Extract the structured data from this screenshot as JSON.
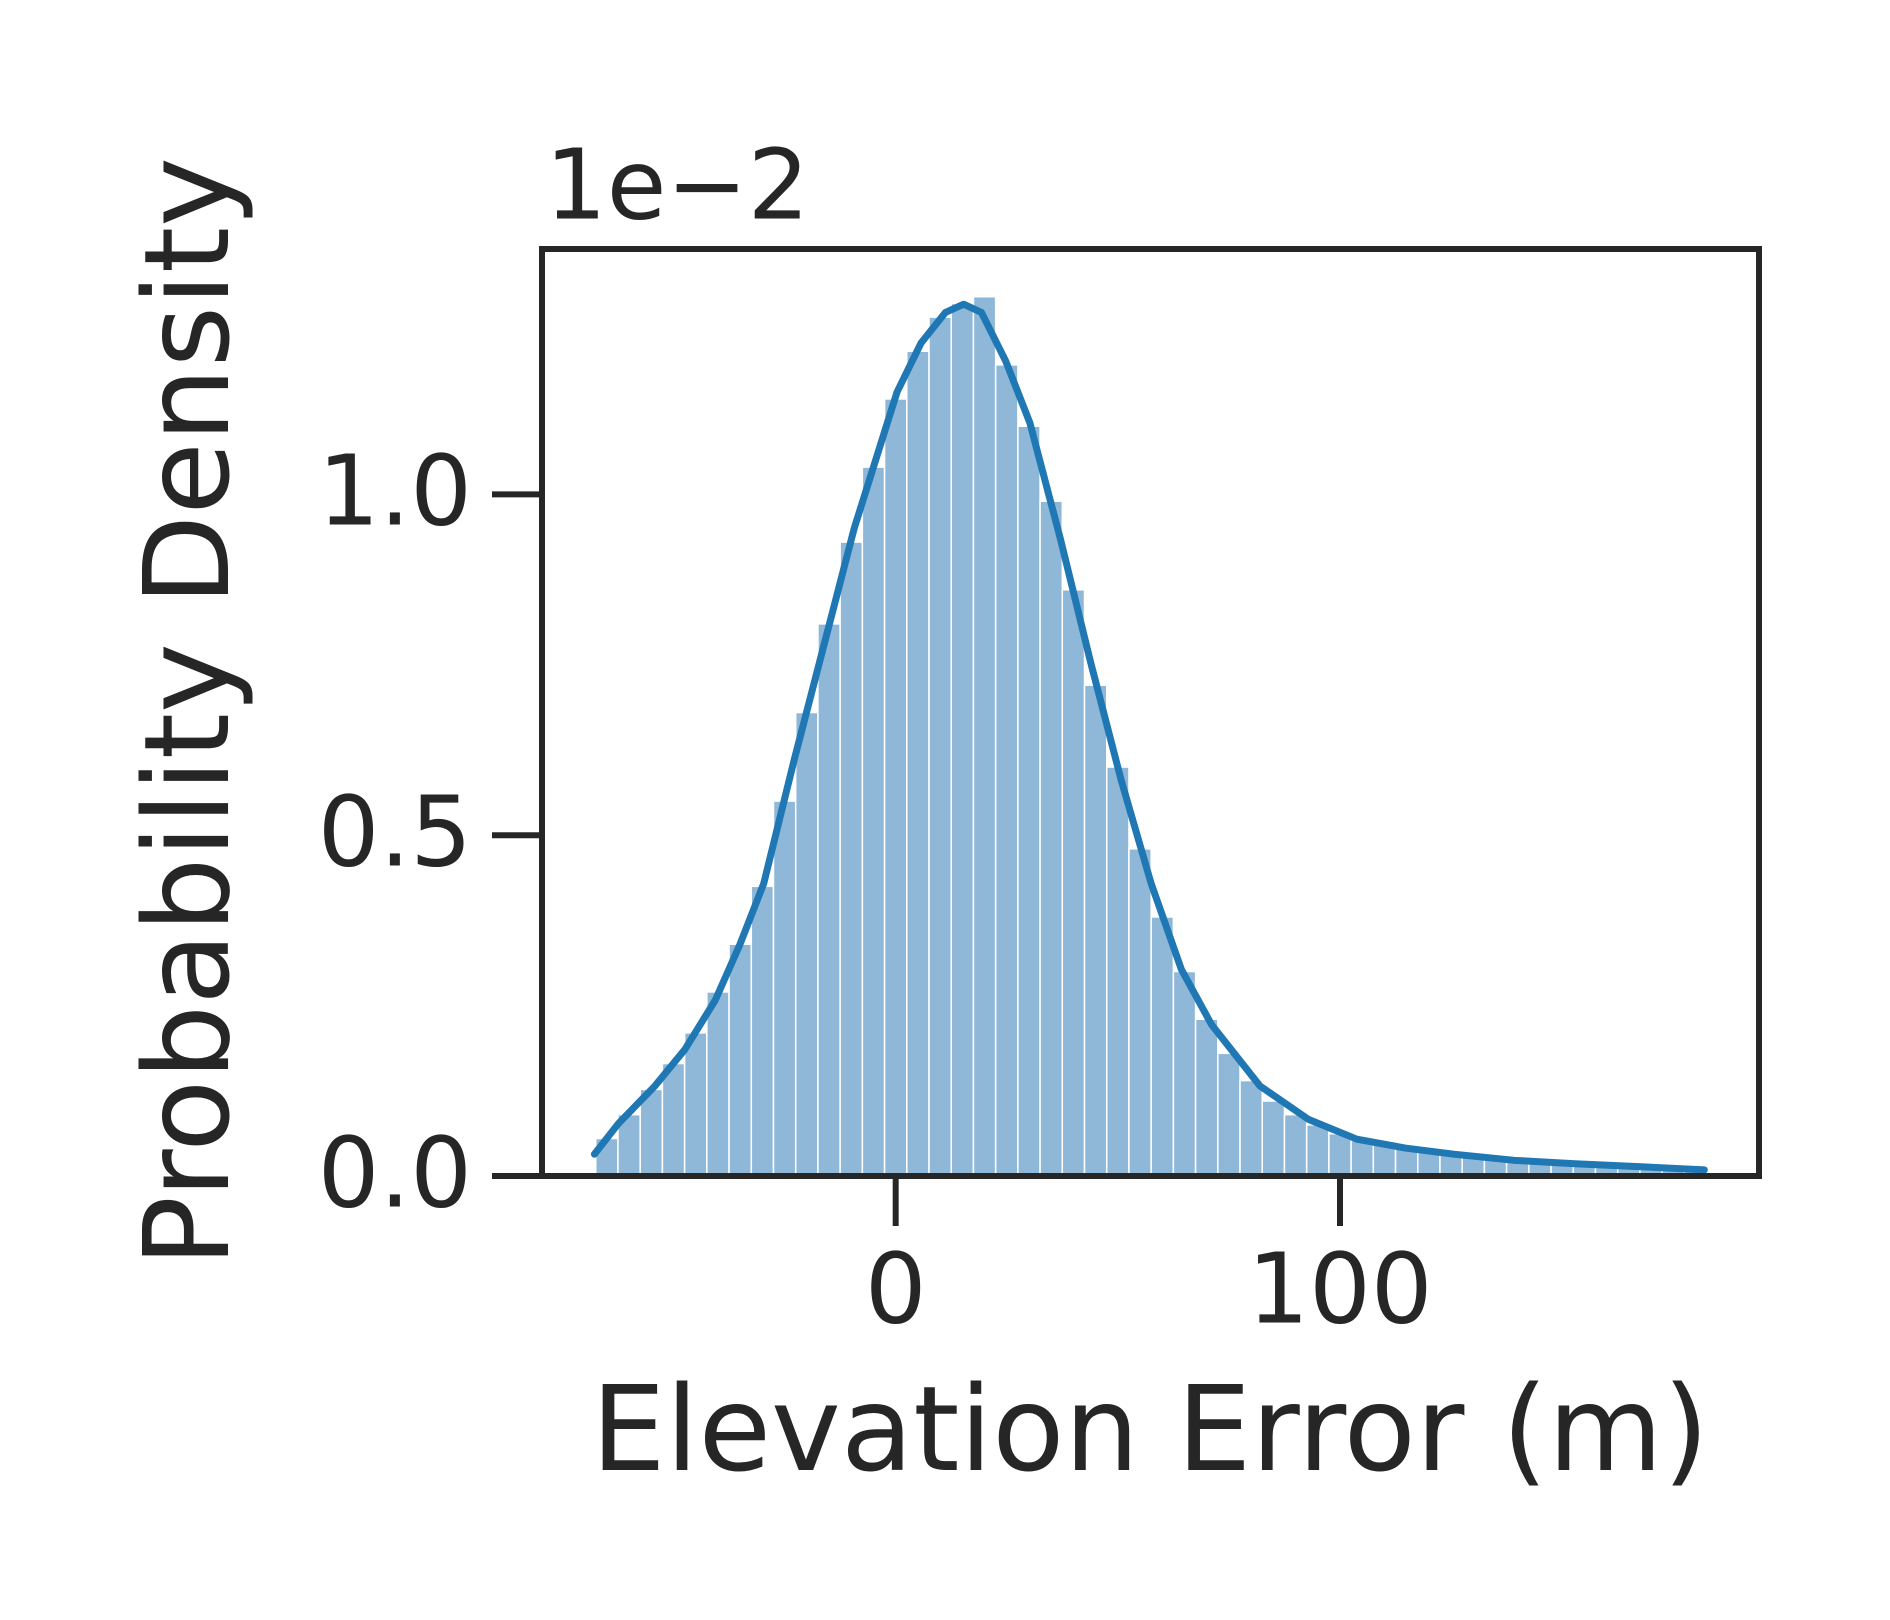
{
  "chart_data": {
    "type": "histogram",
    "offset_text": "1e−2",
    "xlabel": "Elevation Error (m)",
    "ylabel": "Probability Density",
    "bins": [
      -67.5,
      -62.5,
      -57.5,
      -52.5,
      -47.5,
      -42.5,
      -37.5,
      -32.5,
      -27.5,
      -22.5,
      -17.5,
      -12.5,
      -7.5,
      -2.5,
      2.5,
      7.5,
      12.5,
      17.5,
      22.5,
      27.5,
      32.5,
      37.5,
      42.5,
      47.5,
      52.5,
      57.5,
      62.5,
      67.5,
      72.5,
      77.5,
      82.5,
      87.5,
      92.5,
      97.5,
      102.5,
      107.5,
      112.5,
      117.5,
      122.5,
      127.5,
      132.5,
      137.5,
      142.5,
      147.5,
      152.5,
      157.5,
      162.5,
      167.5,
      172.5,
      177.5,
      182.5
    ],
    "values": [
      0.055,
      0.09,
      0.127,
      0.165,
      0.21,
      0.27,
      0.34,
      0.425,
      0.55,
      0.68,
      0.81,
      0.93,
      1.04,
      1.14,
      1.21,
      1.26,
      1.28,
      1.29,
      1.19,
      1.1,
      0.99,
      0.86,
      0.72,
      0.6,
      0.48,
      0.38,
      0.3,
      0.23,
      0.18,
      0.14,
      0.11,
      0.09,
      0.075,
      0.062,
      0.052,
      0.046,
      0.041,
      0.037,
      0.033,
      0.029,
      0.026,
      0.023,
      0.021,
      0.019,
      0.018,
      0.016,
      0.015,
      0.013,
      0.012,
      0.01
    ],
    "color": "#8fb8d8",
    "kde": {
      "color": "#1f77b4",
      "x": [
        -67.8,
        -62.4,
        -54.2,
        -47.4,
        -40.6,
        -35.1,
        -29.7,
        -22.9,
        -16.1,
        -9.3,
        0.3,
        5.7,
        11.2,
        15.3,
        19.3,
        24.8,
        30.2,
        37.1,
        43.9,
        50.7,
        57.5,
        64.3,
        71.1,
        82.0,
        92.9,
        103.8,
        114.7,
        125.6,
        139.2,
        152.9,
        166.5,
        182.0
      ],
      "values": [
        0.032,
        0.077,
        0.132,
        0.186,
        0.258,
        0.339,
        0.429,
        0.609,
        0.78,
        0.951,
        1.15,
        1.222,
        1.267,
        1.279,
        1.267,
        1.195,
        1.105,
        0.934,
        0.753,
        0.582,
        0.429,
        0.303,
        0.222,
        0.132,
        0.083,
        0.054,
        0.041,
        0.032,
        0.023,
        0.018,
        0.014,
        0.009
      ]
    },
    "xlim": [
      -79.6,
      194.3
    ],
    "ylim": [
      0,
      1.36
    ],
    "xticks": [
      0,
      100
    ],
    "yticks": [
      {
        "value": 0,
        "label": "0.0"
      },
      {
        "value": 0.5,
        "label": "0.5"
      },
      {
        "value": 1.0,
        "label": "1.0"
      }
    ],
    "grid": false
  }
}
